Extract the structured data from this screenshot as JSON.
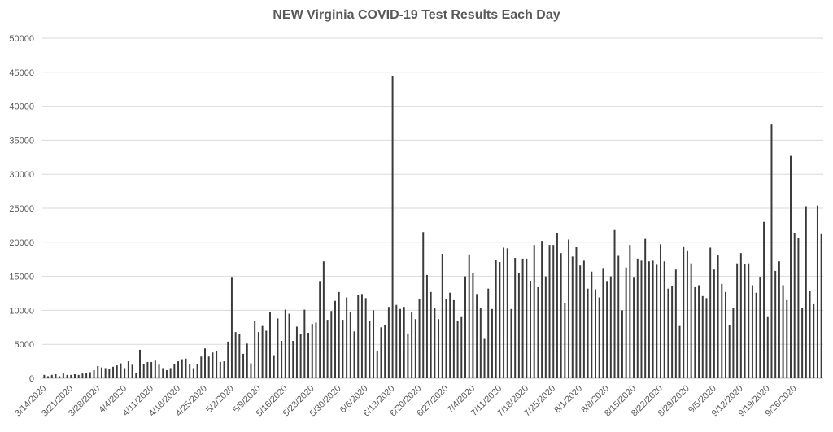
{
  "chart_data": {
    "type": "bar",
    "title": "NEW Virginia COVID-19 Test Results Each Day",
    "xlabel": "",
    "ylabel": "",
    "ylim": [
      0,
      50000
    ],
    "yticks": [
      0,
      5000,
      10000,
      15000,
      20000,
      25000,
      30000,
      35000,
      40000,
      45000,
      50000
    ],
    "grid": true,
    "bar_color": "#3a3a3a",
    "grid_color": "#d9d9d9",
    "tick_labels_x": [
      "3/14/2020",
      "3/21/2020",
      "3/28/2020",
      "4/4/2020",
      "4/11/2020",
      "4/18/2020",
      "4/25/2020",
      "5/2/2020",
      "5/9/2020",
      "5/16/2020",
      "5/23/2020",
      "5/30/2020",
      "6/6/2020",
      "6/13/2020",
      "6/20/2020",
      "6/27/2020",
      "7/4/2020",
      "7/11/2020",
      "7/18/2020",
      "7/25/2020",
      "8/1/2020",
      "8/8/2020",
      "8/15/2020",
      "8/22/2020",
      "8/29/2020",
      "9/5/2020",
      "9/12/2020",
      "9/19/2020",
      "9/26/2020"
    ],
    "start_date": "3/14/2020",
    "values": [
      500,
      300,
      500,
      600,
      300,
      700,
      500,
      500,
      600,
      500,
      700,
      800,
      900,
      1200,
      1800,
      1600,
      1500,
      1400,
      1700,
      1900,
      2200,
      1500,
      2500,
      2000,
      800,
      4200,
      2100,
      2400,
      2400,
      2600,
      2000,
      1500,
      1200,
      1500,
      2100,
      2500,
      2800,
      2900,
      2100,
      1500,
      2100,
      3200,
      4400,
      3200,
      3800,
      4000,
      2400,
      2500,
      5400,
      14800,
      6800,
      6500,
      3600,
      5100,
      2200,
      8500,
      6800,
      7700,
      7000,
      9800,
      3400,
      8800,
      5500,
      10100,
      9500,
      5500,
      7600,
      6500,
      10100,
      6700,
      8000,
      8200,
      14200,
      17200,
      8600,
      9900,
      11400,
      12700,
      8600,
      11900,
      9800,
      6900,
      12200,
      12400,
      11800,
      8500,
      10000,
      4000,
      7500,
      7900,
      10500,
      44500,
      10800,
      10200,
      10500,
      6600,
      9700,
      8700,
      11700,
      21500,
      15200,
      12700,
      10400,
      8700,
      18300,
      11600,
      12600,
      11500,
      8500,
      9000,
      15000,
      18200,
      15500,
      12400,
      10400,
      5800,
      13200,
      10200,
      17400,
      17100,
      19200,
      19100,
      10200,
      17700,
      15500,
      17600,
      17600,
      14300,
      19600,
      13400,
      20200,
      15000,
      19600,
      19600,
      21300,
      18400,
      11100,
      20400,
      17900,
      19300,
      16600,
      17300,
      13200,
      15700,
      13100,
      11900,
      16100,
      14200,
      15000,
      21800,
      18000,
      10000,
      16300,
      19600,
      14800,
      17600,
      17300,
      20500,
      17200,
      17300,
      16700,
      19700,
      17200,
      13200,
      13600,
      16000,
      7700,
      19400,
      18800,
      16900,
      13400,
      13700,
      12100,
      11800,
      19200,
      16000,
      18100,
      13900,
      12700,
      7800,
      10400,
      16900,
      18400,
      16800,
      16900,
      13700,
      12600,
      14900,
      23000,
      9000,
      37300,
      15800,
      17200,
      13700,
      11500,
      32700,
      21400,
      20600,
      10400,
      25300,
      12800,
      10900,
      25400,
      21200
    ]
  }
}
